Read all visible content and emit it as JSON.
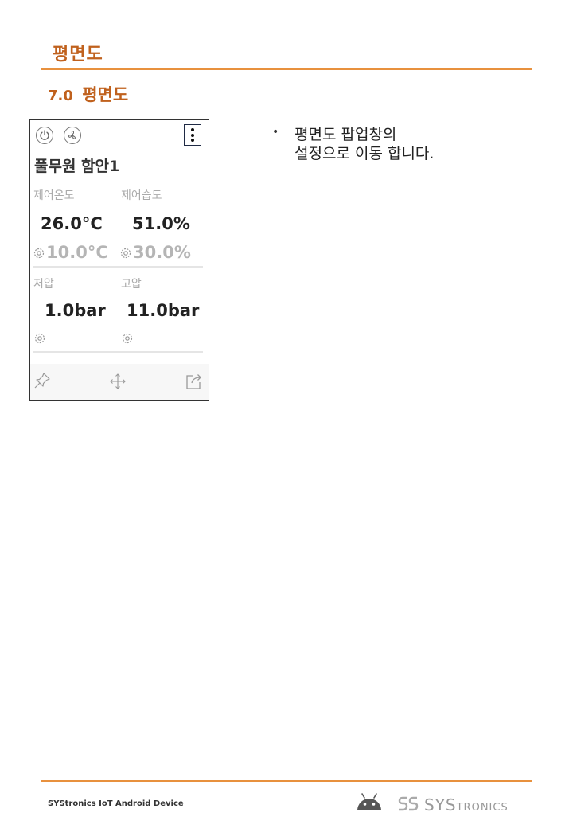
{
  "header": {
    "title": "평면도"
  },
  "section": {
    "number": "7.0",
    "title": "평면도"
  },
  "card": {
    "icons": {
      "power": "power-icon",
      "fan": "fan-icon",
      "menu": "vertical-dots-menu-icon"
    },
    "device_name": "풀무원 함안1",
    "control_temp": {
      "label": "제어온도",
      "value": "26.0°C",
      "setpoint": "10.0°C"
    },
    "control_humidity": {
      "label": "제어습도",
      "value": "51.0%",
      "setpoint": "30.0%"
    },
    "low_pressure": {
      "label": "저압",
      "value": "1.0bar"
    },
    "high_pressure": {
      "label": "고압",
      "value": "11.0bar"
    },
    "toolbar": {
      "pin": "pin-icon",
      "move": "move-arrows-icon",
      "share": "share-icon"
    }
  },
  "bullet": {
    "lines": [
      "평면도 팝업창의",
      "설정으로 이동 합니다."
    ]
  },
  "footer": {
    "left_text": "SYStronics IoT Android Device",
    "brand_big": "SYS",
    "brand_small": "TRONICS",
    "accent_color": "#e8913e"
  }
}
